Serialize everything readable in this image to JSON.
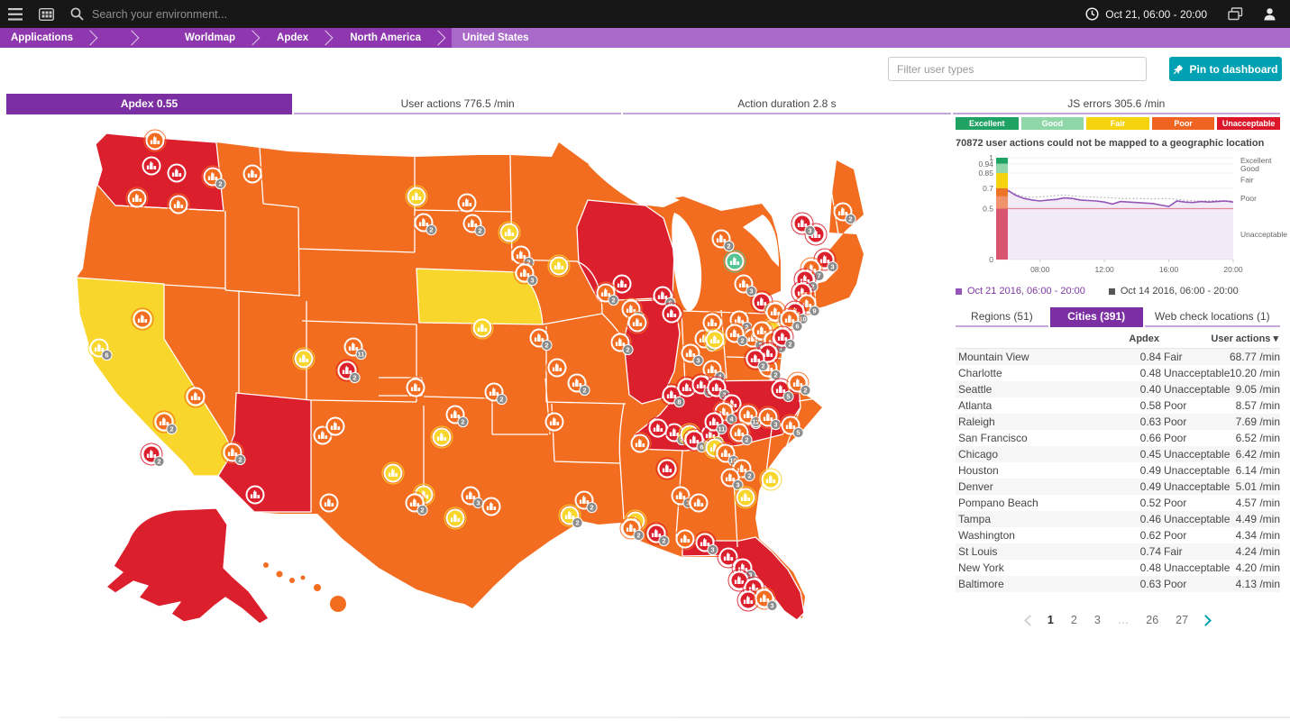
{
  "topbar": {
    "search_placeholder": "Search your environment...",
    "time_range": "Oct 21, 06:00 - 20:00"
  },
  "breadcrumb": [
    "Applications",
    "",
    "Worldmap",
    "Apdex",
    "North America",
    "United States"
  ],
  "controls": {
    "filter_placeholder": "Filter user types",
    "pin_label": "Pin to dashboard"
  },
  "metric_tabs": [
    {
      "label": "Apdex 0.55",
      "selected": true
    },
    {
      "label": "User actions 776.5 /min",
      "selected": false
    },
    {
      "label": "Action duration 2.8 s",
      "selected": false
    },
    {
      "label": "JS errors 305.6 /min",
      "selected": false
    }
  ],
  "ratings_legend": [
    {
      "key": "excellent",
      "label": "Excellent",
      "color": "#1fa263"
    },
    {
      "key": "good",
      "label": "Good",
      "color": "#8fd6a8"
    },
    {
      "key": "fair",
      "label": "Fair",
      "color": "#f5d30f"
    },
    {
      "key": "poor",
      "label": "Poor",
      "color": "#ef6420"
    },
    {
      "key": "unacceptable",
      "label": "Unacceptable",
      "color": "#dc172a"
    }
  ],
  "map_palette": {
    "excellent": "#1fa263",
    "good": "#54c492",
    "fair": "#f8d62c",
    "poor": "#f36d21",
    "unacceptable": "#dc1f2d"
  },
  "unmapped_note": "70872 user actions could not be mapped to a geographic location",
  "chart_data": {
    "type": "area",
    "title": "Apdex over time (current vs previous week)",
    "x_range_hours": [
      6,
      20
    ],
    "x_ticks": [
      "08:00",
      "12:00",
      "16:00",
      "20:00"
    ],
    "x_tick_hours": [
      8,
      12,
      16,
      20
    ],
    "ylim": [
      0,
      1
    ],
    "y_ticks": [
      1,
      0.94,
      0.85,
      0.7,
      0.5,
      0
    ],
    "right_labels": [
      {
        "label": "Excellent",
        "at": 0.975
      },
      {
        "label": "Good",
        "at": 0.895
      },
      {
        "label": "Fair",
        "at": 0.785
      },
      {
        "label": "Poor",
        "at": 0.6
      },
      {
        "label": "Unacceptable",
        "at": 0.25
      }
    ],
    "threshold_bands": [
      {
        "from": 0.94,
        "to": 1,
        "color": "#1fa263"
      },
      {
        "from": 0.85,
        "to": 0.94,
        "color": "#8fd6a8"
      },
      {
        "from": 0.7,
        "to": 0.85,
        "color": "#f5d30f"
      },
      {
        "from": 0.62,
        "to": 0.7,
        "color": "#ee7326"
      },
      {
        "from": 0.5,
        "to": 0.62,
        "color": "#f0926c"
      },
      {
        "from": 0,
        "to": 0.5,
        "color": "#d85570"
      }
    ],
    "reference_line": {
      "value": 0.5,
      "color": "#e4869a"
    },
    "series": [
      {
        "name": "Oct 21 2016, 06:00 - 20:00",
        "style": "solid",
        "color": "#9355b7",
        "fill": "rgba(147,85,183,0.12)",
        "legend_text_color": "#7c38a1",
        "x": [
          6,
          6.5,
          7,
          7.5,
          8,
          8.5,
          9,
          9.5,
          10,
          10.5,
          11,
          11.5,
          12,
          12.5,
          13,
          13.5,
          14,
          14.5,
          15,
          15.5,
          16,
          16.5,
          17,
          17.5,
          18,
          18.5,
          19,
          19.5,
          20
        ],
        "values": [
          0.68,
          0.63,
          0.6,
          0.585,
          0.575,
          0.585,
          0.59,
          0.605,
          0.6,
          0.585,
          0.58,
          0.575,
          0.565,
          0.545,
          0.57,
          0.565,
          0.56,
          0.555,
          0.55,
          0.535,
          0.52,
          0.575,
          0.565,
          0.56,
          0.57,
          0.565,
          0.57,
          0.575,
          0.565
        ]
      },
      {
        "name": "Oct 14 2016, 06:00 - 20:00",
        "style": "dotted",
        "color": "#9e9e9e",
        "legend_text_color": "#454646",
        "x": [
          6,
          6.5,
          7,
          7.5,
          8,
          8.5,
          9,
          9.5,
          10,
          10.5,
          11,
          11.5,
          12,
          12.5,
          13,
          13.5,
          14,
          14.5,
          15,
          15.5,
          16,
          16.5,
          17,
          17.5,
          18,
          18.5,
          19,
          19.5,
          20
        ],
        "values": [
          0.67,
          0.645,
          0.615,
          0.612,
          0.615,
          0.62,
          0.63,
          0.635,
          0.625,
          0.62,
          0.615,
          0.612,
          0.61,
          0.605,
          0.6,
          0.6,
          0.6,
          0.598,
          0.595,
          0.598,
          0.6,
          0.592,
          0.582,
          0.578,
          0.575,
          0.578,
          0.58,
          0.578,
          0.575
        ]
      }
    ]
  },
  "location_tabs": [
    {
      "label": "Regions (51)",
      "selected": false
    },
    {
      "label": "Cities (391)",
      "selected": true
    },
    {
      "label": "Web check locations (1)",
      "selected": false
    }
  ],
  "table": {
    "headers": {
      "apdex": "Apdex",
      "actions": "User actions ▾"
    },
    "rows": [
      {
        "city": "Mountain View",
        "apdex": "0.84",
        "rating": "Fair",
        "actions": "68.77 /min"
      },
      {
        "city": "Charlotte",
        "apdex": "0.48",
        "rating": "Unacceptable",
        "actions": "10.20 /min"
      },
      {
        "city": "Seattle",
        "apdex": "0.40",
        "rating": "Unacceptable",
        "actions": "9.05 /min"
      },
      {
        "city": "Atlanta",
        "apdex": "0.58",
        "rating": "Poor",
        "actions": "8.57 /min"
      },
      {
        "city": "Raleigh",
        "apdex": "0.63",
        "rating": "Poor",
        "actions": "7.69 /min"
      },
      {
        "city": "San Francisco",
        "apdex": "0.66",
        "rating": "Poor",
        "actions": "6.52 /min"
      },
      {
        "city": "Chicago",
        "apdex": "0.45",
        "rating": "Unacceptable",
        "actions": "6.42 /min"
      },
      {
        "city": "Houston",
        "apdex": "0.49",
        "rating": "Unacceptable",
        "actions": "6.14 /min"
      },
      {
        "city": "Denver",
        "apdex": "0.49",
        "rating": "Unacceptable",
        "actions": "5.01 /min"
      },
      {
        "city": "Pompano Beach",
        "apdex": "0.52",
        "rating": "Poor",
        "actions": "4.57 /min"
      },
      {
        "city": "Tampa",
        "apdex": "0.46",
        "rating": "Unacceptable",
        "actions": "4.49 /min"
      },
      {
        "city": "Washington",
        "apdex": "0.62",
        "rating": "Poor",
        "actions": "4.34 /min"
      },
      {
        "city": "St Louis",
        "apdex": "0.74",
        "rating": "Fair",
        "actions": "4.24 /min"
      },
      {
        "city": "New York",
        "apdex": "0.48",
        "rating": "Unacceptable",
        "actions": "4.20 /min"
      },
      {
        "city": "Baltimore",
        "apdex": "0.63",
        "rating": "Poor",
        "actions": "4.13 /min"
      }
    ]
  },
  "pagination": {
    "pages": [
      "1",
      "2",
      "3",
      "…",
      "26",
      "27"
    ],
    "current": "1"
  },
  "map": {
    "label": "United States",
    "base_rating": "poor",
    "states": [
      {
        "id": "WA",
        "rating": "unacceptable"
      },
      {
        "id": "AZ",
        "rating": "unacceptable"
      },
      {
        "id": "WI",
        "rating": "unacceptable"
      },
      {
        "id": "IL",
        "rating": "unacceptable"
      },
      {
        "id": "KYTN",
        "rating": "unacceptable"
      },
      {
        "id": "FL",
        "rating": "unacceptable"
      },
      {
        "id": "AK",
        "rating": "unacceptable"
      },
      {
        "id": "CA",
        "rating": "fair"
      },
      {
        "id": "NE",
        "rating": "fair"
      }
    ],
    "markers": [
      {
        "x": 172,
        "y": 26,
        "r": "poor"
      },
      {
        "x": 168,
        "y": 54,
        "r": "unacceptable"
      },
      {
        "x": 196,
        "y": 62,
        "r": "unacceptable"
      },
      {
        "x": 152,
        "y": 90,
        "r": "poor"
      },
      {
        "x": 198,
        "y": 97,
        "r": "poor"
      },
      {
        "x": 236,
        "y": 66,
        "r": "poor",
        "n": "2"
      },
      {
        "x": 280,
        "y": 63,
        "r": "poor"
      },
      {
        "x": 462,
        "y": 88,
        "r": "fair"
      },
      {
        "x": 470,
        "y": 117,
        "r": "poor",
        "n": "2"
      },
      {
        "x": 518,
        "y": 95,
        "r": "poor"
      },
      {
        "x": 524,
        "y": 118,
        "r": "poor",
        "n": "2"
      },
      {
        "x": 337,
        "y": 268,
        "r": "fair"
      },
      {
        "x": 392,
        "y": 255,
        "r": "poor",
        "n": "11"
      },
      {
        "x": 385,
        "y": 281,
        "r": "unacceptable",
        "n": "2"
      },
      {
        "x": 358,
        "y": 353,
        "r": "poor"
      },
      {
        "x": 372,
        "y": 343,
        "r": "poor"
      },
      {
        "x": 283,
        "y": 419,
        "r": "unacceptable"
      },
      {
        "x": 217,
        "y": 310,
        "r": "poor"
      },
      {
        "x": 158,
        "y": 224,
        "r": "poor"
      },
      {
        "x": 110,
        "y": 256,
        "r": "fair",
        "n": "6"
      },
      {
        "x": 182,
        "y": 338,
        "r": "poor",
        "n": "2"
      },
      {
        "x": 168,
        "y": 374,
        "r": "unacceptable",
        "n": "2"
      },
      {
        "x": 258,
        "y": 372,
        "r": "poor",
        "n": "2"
      },
      {
        "x": 565,
        "y": 128,
        "r": "fair"
      },
      {
        "x": 578,
        "y": 153,
        "r": "poor",
        "n": "2"
      },
      {
        "x": 582,
        "y": 173,
        "r": "poor",
        "n": "3"
      },
      {
        "x": 535,
        "y": 234,
        "r": "fair"
      },
      {
        "x": 598,
        "y": 245,
        "r": "poor",
        "n": "2"
      },
      {
        "x": 548,
        "y": 305,
        "r": "poor",
        "n": "2"
      },
      {
        "x": 461,
        "y": 300,
        "r": "poor"
      },
      {
        "x": 490,
        "y": 355,
        "r": "fair"
      },
      {
        "x": 436,
        "y": 395,
        "r": "fair"
      },
      {
        "x": 470,
        "y": 419,
        "r": "fair"
      },
      {
        "x": 365,
        "y": 428,
        "r": "poor"
      },
      {
        "x": 505,
        "y": 330,
        "r": "poor",
        "n": "2"
      },
      {
        "x": 522,
        "y": 420,
        "r": "poor",
        "n": "3"
      },
      {
        "x": 545,
        "y": 432,
        "r": "poor"
      },
      {
        "x": 460,
        "y": 428,
        "r": "poor",
        "n": "2"
      },
      {
        "x": 505,
        "y": 445,
        "r": "fair"
      },
      {
        "x": 615,
        "y": 338,
        "r": "poor"
      },
      {
        "x": 648,
        "y": 425,
        "r": "poor",
        "n": "2"
      },
      {
        "x": 632,
        "y": 442,
        "r": "fair",
        "n": "2"
      },
      {
        "x": 705,
        "y": 448,
        "r": "fair"
      },
      {
        "x": 618,
        "y": 278,
        "r": "poor"
      },
      {
        "x": 640,
        "y": 295,
        "r": "poor",
        "n": "2"
      },
      {
        "x": 688,
        "y": 250,
        "r": "poor",
        "n": "2"
      },
      {
        "x": 620,
        "y": 165,
        "r": "fair"
      },
      {
        "x": 690,
        "y": 185,
        "r": "unacceptable"
      },
      {
        "x": 735,
        "y": 198,
        "r": "unacceptable",
        "n": "6"
      },
      {
        "x": 745,
        "y": 218,
        "r": "unacceptable"
      },
      {
        "x": 700,
        "y": 213,
        "r": "poor",
        "n": "3"
      },
      {
        "x": 707,
        "y": 228,
        "r": "poor"
      },
      {
        "x": 672,
        "y": 195,
        "r": "poor",
        "n": "2"
      },
      {
        "x": 815,
        "y": 160,
        "r": "good"
      },
      {
        "x": 845,
        "y": 205,
        "r": "unacceptable",
        "n": "7"
      },
      {
        "x": 825,
        "y": 185,
        "r": "poor",
        "n": "3"
      },
      {
        "x": 800,
        "y": 135,
        "r": "poor",
        "n": "2"
      },
      {
        "x": 781,
        "y": 246,
        "r": "poor",
        "n": "5"
      },
      {
        "x": 766,
        "y": 262,
        "r": "poor",
        "n": "3"
      },
      {
        "x": 790,
        "y": 280,
        "r": "poor",
        "n": "4"
      },
      {
        "x": 820,
        "y": 225,
        "r": "poor",
        "n": "2"
      },
      {
        "x": 835,
        "y": 245,
        "r": "poor",
        "n": "3"
      },
      {
        "x": 856,
        "y": 235,
        "r": "fair"
      },
      {
        "x": 852,
        "y": 278,
        "r": "poor",
        "n": "2"
      },
      {
        "x": 745,
        "y": 308,
        "r": "unacceptable",
        "n": "8"
      },
      {
        "x": 762,
        "y": 300,
        "r": "unacceptable"
      },
      {
        "x": 778,
        "y": 297,
        "r": "unacceptable",
        "n": "2"
      },
      {
        "x": 795,
        "y": 300,
        "r": "unacceptable",
        "n": "3"
      },
      {
        "x": 812,
        "y": 318,
        "r": "unacceptable"
      },
      {
        "x": 830,
        "y": 332,
        "r": "unacceptable",
        "n": "2"
      },
      {
        "x": 748,
        "y": 350,
        "r": "unacceptable",
        "n": "2"
      },
      {
        "x": 730,
        "y": 345,
        "r": "unacceptable"
      },
      {
        "x": 765,
        "y": 352,
        "r": "fair",
        "n": "2"
      },
      {
        "x": 710,
        "y": 362,
        "r": "poor"
      },
      {
        "x": 788,
        "y": 352,
        "r": "unacceptable",
        "n": "3"
      },
      {
        "x": 935,
        "y": 105,
        "r": "poor",
        "n": "2"
      },
      {
        "x": 905,
        "y": 130,
        "r": "unacceptable"
      },
      {
        "x": 890,
        "y": 118,
        "r": "unacceptable",
        "n": "3"
      },
      {
        "x": 915,
        "y": 158,
        "r": "unacceptable",
        "n": "3"
      },
      {
        "x": 900,
        "y": 168,
        "r": "poor",
        "n": "7"
      },
      {
        "x": 893,
        "y": 180,
        "r": "unacceptable",
        "n": "2"
      },
      {
        "x": 890,
        "y": 194,
        "r": "unacceptable"
      },
      {
        "x": 895,
        "y": 207,
        "r": "poor",
        "n": "9"
      },
      {
        "x": 860,
        "y": 216,
        "r": "poor",
        "n": "2"
      },
      {
        "x": 882,
        "y": 216,
        "r": "unacceptable",
        "n": "10"
      },
      {
        "x": 876,
        "y": 224,
        "r": "poor",
        "n": "6"
      },
      {
        "x": 815,
        "y": 240,
        "r": "poor",
        "n": "2"
      },
      {
        "x": 845,
        "y": 237,
        "r": "poor",
        "n": "2"
      },
      {
        "x": 790,
        "y": 228,
        "r": "poor"
      },
      {
        "x": 793,
        "y": 247,
        "r": "fair"
      },
      {
        "x": 858,
        "y": 248,
        "r": "poor",
        "n": "7"
      },
      {
        "x": 868,
        "y": 244,
        "r": "unacceptable",
        "n": "2"
      },
      {
        "x": 852,
        "y": 262,
        "r": "unacceptable"
      },
      {
        "x": 838,
        "y": 268,
        "r": "unacceptable",
        "n": "2"
      },
      {
        "x": 866,
        "y": 302,
        "r": "unacceptable",
        "n": "5"
      },
      {
        "x": 885,
        "y": 295,
        "r": "poor",
        "n": "2"
      },
      {
        "x": 803,
        "y": 327,
        "r": "poor",
        "n": "4"
      },
      {
        "x": 830,
        "y": 330,
        "r": "poor",
        "n": "12"
      },
      {
        "x": 852,
        "y": 333,
        "r": "poor",
        "n": "3"
      },
      {
        "x": 877,
        "y": 342,
        "r": "poor",
        "n": "5"
      },
      {
        "x": 820,
        "y": 350,
        "r": "poor",
        "n": "2"
      },
      {
        "x": 792,
        "y": 338,
        "r": "unacceptable",
        "n": "11"
      },
      {
        "x": 770,
        "y": 358,
        "r": "unacceptable",
        "n": "6"
      },
      {
        "x": 793,
        "y": 367,
        "r": "fair",
        "n": "3"
      },
      {
        "x": 805,
        "y": 373,
        "r": "poor",
        "n": "10"
      },
      {
        "x": 823,
        "y": 390,
        "r": "poor",
        "n": "2"
      },
      {
        "x": 810,
        "y": 400,
        "r": "poor",
        "n": "3"
      },
      {
        "x": 827,
        "y": 422,
        "r": "fair"
      },
      {
        "x": 855,
        "y": 402,
        "r": "fair"
      },
      {
        "x": 740,
        "y": 390,
        "r": "unacceptable"
      },
      {
        "x": 755,
        "y": 420,
        "r": "poor",
        "n": "3"
      },
      {
        "x": 775,
        "y": 428,
        "r": "poor"
      },
      {
        "x": 782,
        "y": 472,
        "r": "unacceptable",
        "n": "3"
      },
      {
        "x": 808,
        "y": 488,
        "r": "unacceptable"
      },
      {
        "x": 824,
        "y": 500,
        "r": "unacceptable",
        "n": "3"
      },
      {
        "x": 820,
        "y": 514,
        "r": "unacceptable"
      },
      {
        "x": 836,
        "y": 522,
        "r": "unacceptable",
        "n": "5"
      },
      {
        "x": 830,
        "y": 536,
        "r": "unacceptable"
      },
      {
        "x": 848,
        "y": 534,
        "r": "poor",
        "n": "3"
      },
      {
        "x": 760,
        "y": 468,
        "r": "poor"
      },
      {
        "x": 728,
        "y": 462,
        "r": "unacceptable",
        "n": "2"
      },
      {
        "x": 700,
        "y": 456,
        "r": "poor",
        "n": "2"
      }
    ]
  }
}
